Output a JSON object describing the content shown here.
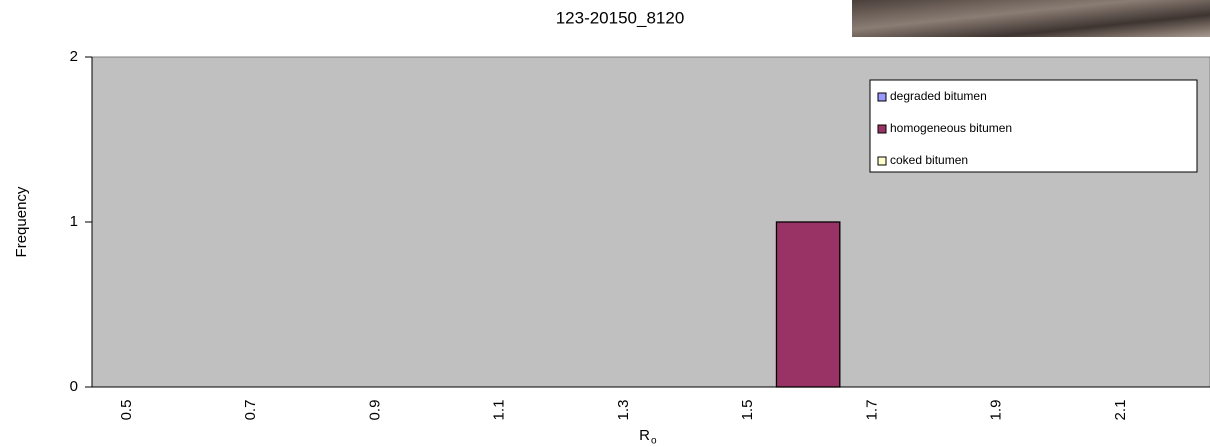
{
  "chart_data": {
    "type": "bar",
    "title": "123-20150_8120",
    "x_label": "R",
    "x_label_subscript": "o",
    "y_label": "Frequency",
    "categories": [
      "0.5",
      null,
      "0.7",
      null,
      "0.9",
      null,
      "1.1",
      null,
      "1.3",
      null,
      "1.5",
      null,
      "1.7",
      null,
      "1.9",
      null,
      "2.1",
      null
    ],
    "series": [
      {
        "name": "degraded bitumen",
        "color": "#9999ff",
        "values": [
          0,
          0,
          0,
          0,
          0,
          0,
          0,
          0,
          0,
          0,
          0,
          0,
          0,
          0,
          0,
          0,
          0,
          0
        ]
      },
      {
        "name": "homogeneous bitumen",
        "color": "#993366",
        "values": [
          0,
          0,
          0,
          0,
          0,
          0,
          0,
          0,
          0,
          0,
          0,
          1,
          0,
          0,
          0,
          0,
          0,
          0
        ]
      },
      {
        "name": "coked bitumen",
        "color": "#ffffcc",
        "values": [
          0,
          0,
          0,
          0,
          0,
          0,
          0,
          0,
          0,
          0,
          0,
          0,
          0,
          0,
          0,
          0,
          0,
          0
        ]
      }
    ],
    "ylim": [
      0,
      2
    ],
    "yticks": [
      0,
      1,
      2
    ],
    "legend": "top-right",
    "background": "#c0c0c0"
  }
}
